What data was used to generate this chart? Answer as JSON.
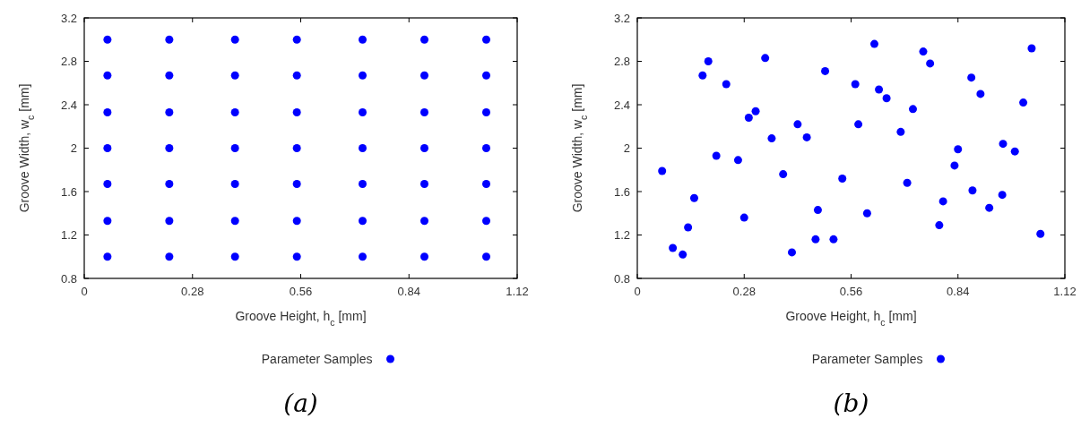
{
  "chart_data": [
    {
      "type": "scatter",
      "xlabel": "Groove Height, h$_{c}$ [mm]",
      "ylabel": "Groove Width, w$_{c}$ [mm]",
      "xlim": [
        0,
        1.12
      ],
      "xticks": [
        0,
        0.28,
        0.56,
        0.84,
        1.12
      ],
      "ylim": [
        0.8,
        3.2
      ],
      "yticks": [
        0.8,
        1.2,
        1.6,
        2,
        2.4,
        2.8,
        3.2
      ],
      "legend": "bottom",
      "marker": "circle",
      "grid": false,
      "annotations": [
        "(a)"
      ],
      "series": [
        {
          "name": "Parameter Samples",
          "color": "#0000ff",
          "x": [
            0.06,
            0.06,
            0.06,
            0.06,
            0.06,
            0.06,
            0.06,
            0.22,
            0.22,
            0.22,
            0.22,
            0.22,
            0.22,
            0.22,
            0.39,
            0.39,
            0.39,
            0.39,
            0.39,
            0.39,
            0.39,
            0.55,
            0.55,
            0.55,
            0.55,
            0.55,
            0.55,
            0.55,
            0.72,
            0.72,
            0.72,
            0.72,
            0.72,
            0.72,
            0.72,
            0.88,
            0.88,
            0.88,
            0.88,
            0.88,
            0.88,
            0.88,
            1.04,
            1.04,
            1.04,
            1.04,
            1.04,
            1.04,
            1.04
          ],
          "values": [
            1,
            1.33,
            1.67,
            2,
            2.33,
            2.67,
            3,
            1,
            1.33,
            1.67,
            2,
            2.33,
            2.67,
            3,
            1,
            1.33,
            1.67,
            2,
            2.33,
            2.67,
            3,
            1,
            1.33,
            1.67,
            2,
            2.33,
            2.67,
            3,
            1,
            1.33,
            1.67,
            2,
            2.33,
            2.67,
            3,
            1,
            1.33,
            1.67,
            2,
            2.33,
            2.67,
            3,
            1,
            1.33,
            1.67,
            2,
            2.33,
            2.67,
            3
          ]
        }
      ]
    },
    {
      "type": "scatter",
      "xlabel": "Groove Height, h$_{c}$ [mm]",
      "ylabel": "Groove Width, w$_{c}$ [mm]",
      "xlim": [
        0,
        1.12
      ],
      "xticks": [
        0,
        0.28,
        0.56,
        0.84,
        1.12
      ],
      "ylim": [
        0.8,
        3.2
      ],
      "yticks": [
        0.8,
        1.2,
        1.6,
        2,
        2.4,
        2.8,
        3.2
      ],
      "legend": "bottom",
      "marker": "circle",
      "grid": false,
      "annotations": [
        "(b)"
      ],
      "series": [
        {
          "name": "Parameter Samples",
          "color": "#0000ff",
          "x": [
            0.065,
            0.093,
            0.119,
            0.133,
            0.149,
            0.171,
            0.186,
            0.207,
            0.233,
            0.264,
            0.28,
            0.292,
            0.31,
            0.335,
            0.352,
            0.382,
            0.405,
            0.42,
            0.444,
            0.467,
            0.473,
            0.492,
            0.514,
            0.537,
            0.571,
            0.579,
            0.602,
            0.621,
            0.633,
            0.653,
            0.69,
            0.707,
            0.722,
            0.749,
            0.767,
            0.791,
            0.801,
            0.831,
            0.84,
            0.875,
            0.878,
            0.899,
            0.922,
            0.956,
            0.958,
            0.989,
            1.011,
            1.033,
            1.056
          ],
          "values": [
            1.79,
            1.08,
            1.02,
            1.27,
            1.54,
            2.67,
            2.8,
            1.93,
            2.59,
            1.89,
            1.36,
            2.28,
            2.34,
            2.83,
            2.09,
            1.76,
            1.04,
            2.22,
            2.1,
            1.16,
            1.43,
            2.71,
            1.16,
            1.72,
            2.59,
            2.22,
            1.4,
            2.96,
            2.54,
            2.46,
            2.15,
            1.68,
            2.36,
            2.89,
            2.78,
            1.29,
            1.51,
            1.84,
            1.99,
            2.65,
            1.61,
            2.5,
            1.45,
            1.57,
            2.04,
            1.97,
            2.42,
            2.92,
            1.21
          ]
        }
      ]
    }
  ]
}
